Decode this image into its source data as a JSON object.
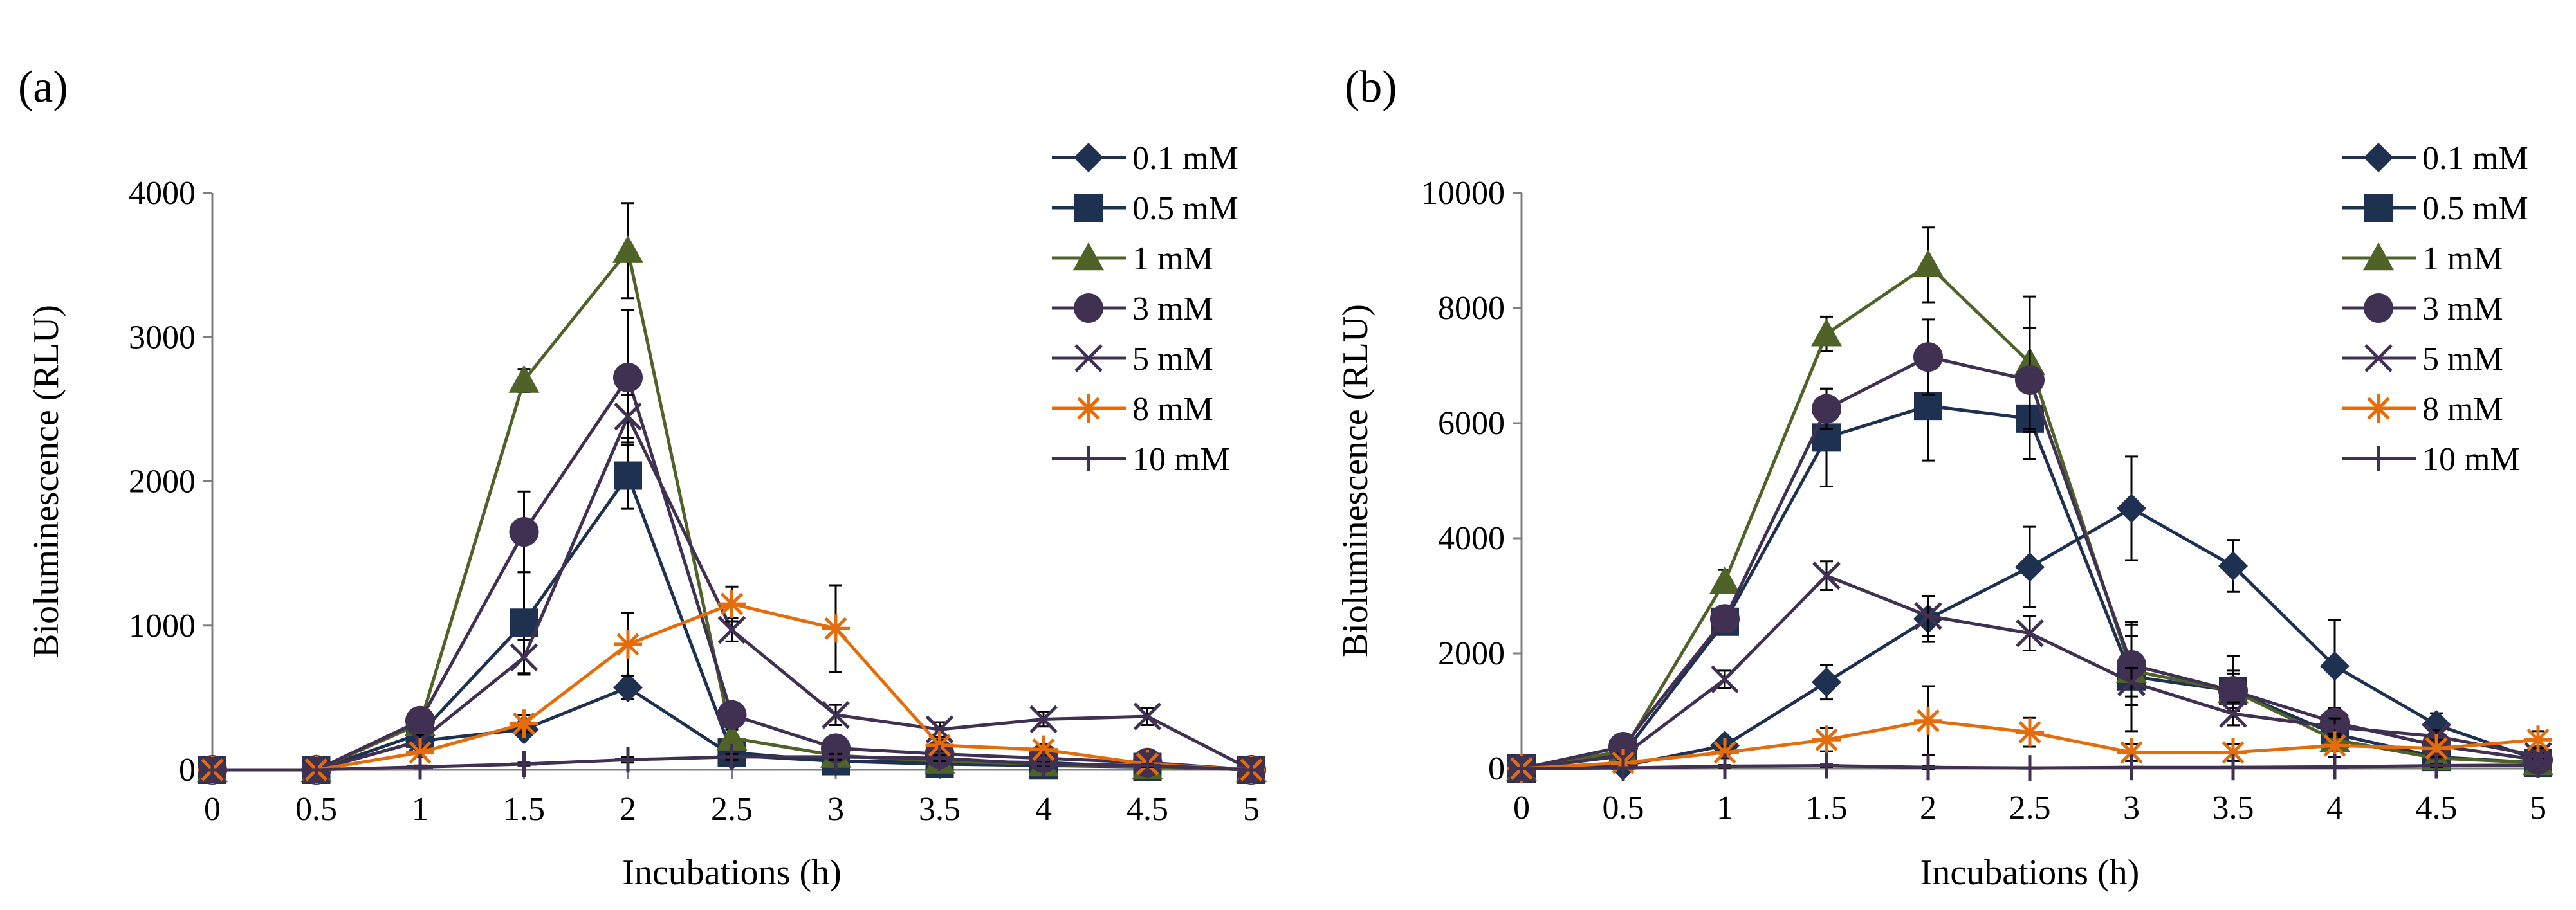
{
  "figure": {
    "panels": [
      {
        "label": "(a)"
      },
      {
        "label": "(b)"
      }
    ]
  },
  "chart_data": [
    {
      "type": "line",
      "panel_label": "(a)",
      "title": "",
      "xlabel": "Incubations (h)",
      "ylabel": "Bioluminescence (RLU)",
      "x": [
        0,
        0.5,
        1,
        1.5,
        2,
        2.5,
        3,
        3.5,
        4,
        4.5,
        5
      ],
      "x_tick_labels": [
        "0",
        "0.5",
        "1",
        "1.5",
        "2",
        "2.5",
        "3",
        "3.5",
        "4",
        "4.5",
        "5"
      ],
      "ylim": [
        0,
        4000
      ],
      "y_ticks": [
        0,
        1000,
        2000,
        3000,
        4000
      ],
      "y_tick_labels": [
        "0",
        "1000",
        "2000",
        "3000",
        "4000"
      ],
      "legend_position": "top-right",
      "series": [
        {
          "name": "0.1 mM",
          "color": "#1f3150",
          "marker": "diamond",
          "values": [
            0,
            0,
            200,
            280,
            570,
            100,
            60,
            60,
            50,
            20,
            0
          ],
          "errors": [
            0,
            0,
            30,
            50,
            80,
            30,
            20,
            20,
            20,
            10,
            0
          ]
        },
        {
          "name": "0.5 mM",
          "color": "#1f3150",
          "marker": "square",
          "values": [
            0,
            0,
            250,
            1020,
            2040,
            120,
            60,
            40,
            30,
            20,
            0
          ],
          "errors": [
            0,
            0,
            40,
            350,
            230,
            40,
            30,
            20,
            20,
            10,
            0
          ]
        },
        {
          "name": "1 mM",
          "color": "#4f6228",
          "marker": "triangle",
          "values": [
            0,
            0,
            320,
            2700,
            3600,
            220,
            100,
            60,
            40,
            20,
            0
          ],
          "errors": [
            0,
            0,
            40,
            80,
            330,
            60,
            30,
            20,
            20,
            10,
            0
          ]
        },
        {
          "name": "3 mM",
          "color": "#403152",
          "marker": "circle",
          "values": [
            0,
            0,
            340,
            1650,
            2720,
            380,
            150,
            110,
            80,
            50,
            0
          ],
          "errors": [
            0,
            0,
            50,
            280,
            470,
            60,
            40,
            30,
            20,
            20,
            0
          ]
        },
        {
          "name": "5 mM",
          "color": "#403152",
          "marker": "x",
          "values": [
            0,
            0,
            200,
            780,
            2450,
            970,
            380,
            280,
            350,
            370,
            0
          ],
          "errors": [
            0,
            0,
            40,
            120,
            150,
            80,
            70,
            50,
            50,
            60,
            0
          ]
        },
        {
          "name": "8 mM",
          "color": "#e46c0a",
          "marker": "star",
          "values": [
            0,
            0,
            120,
            320,
            870,
            1150,
            980,
            170,
            140,
            40,
            0
          ],
          "errors": [
            0,
            0,
            30,
            60,
            220,
            120,
            300,
            40,
            40,
            20,
            0
          ]
        },
        {
          "name": "10 mM",
          "color": "#403152",
          "marker": "plus",
          "values": [
            0,
            0,
            20,
            40,
            70,
            90,
            90,
            80,
            40,
            30,
            0
          ],
          "errors": [
            0,
            0,
            10,
            10,
            20,
            20,
            20,
            20,
            10,
            10,
            0
          ]
        }
      ]
    },
    {
      "type": "line",
      "panel_label": "(b)",
      "title": "",
      "xlabel": "Incubations (h)",
      "ylabel": "Bioluminescence (RLU)",
      "x": [
        0,
        0.5,
        1,
        1.5,
        2,
        2.5,
        3,
        3.5,
        4,
        4.5,
        5
      ],
      "x_tick_labels": [
        "0",
        "0.5",
        "1",
        "1.5",
        "2",
        "2.5",
        "3",
        "3.5",
        "4",
        "4.5",
        "5"
      ],
      "ylim": [
        0,
        10000
      ],
      "y_ticks": [
        0,
        2000,
        4000,
        6000,
        8000,
        10000
      ],
      "y_tick_labels": [
        "0",
        "2000",
        "4000",
        "6000",
        "8000",
        "10000"
      ],
      "legend_position": "top-right",
      "series": [
        {
          "name": "0.1 mM",
          "color": "#1f3150",
          "marker": "diamond",
          "values": [
            0,
            50,
            400,
            1500,
            2600,
            3500,
            4520,
            3520,
            1780,
            760,
            150
          ],
          "errors": [
            0,
            20,
            100,
            300,
            400,
            700,
            900,
            450,
            800,
            200,
            60
          ]
        },
        {
          "name": "0.5 mM",
          "color": "#1f3150",
          "marker": "square",
          "values": [
            0,
            250,
            2550,
            5750,
            6300,
            6080,
            1600,
            1350,
            600,
            200,
            100
          ],
          "errors": [
            0,
            50,
            200,
            850,
            950,
            700,
            950,
            600,
            300,
            100,
            50
          ]
        },
        {
          "name": "1 mM",
          "color": "#4f6228",
          "marker": "triangle",
          "values": [
            0,
            300,
            3250,
            7550,
            8750,
            7050,
            1700,
            1350,
            500,
            180,
            100
          ],
          "errors": [
            0,
            50,
            200,
            300,
            650,
            1150,
            600,
            300,
            200,
            80,
            50
          ]
        },
        {
          "name": "3 mM",
          "color": "#403152",
          "marker": "circle",
          "values": [
            0,
            380,
            2600,
            6250,
            7150,
            6750,
            1800,
            1350,
            800,
            400,
            150
          ],
          "errors": [
            0,
            60,
            200,
            350,
            650,
            900,
            700,
            350,
            250,
            120,
            60
          ]
        },
        {
          "name": "5 mM",
          "color": "#403152",
          "marker": "x",
          "values": [
            0,
            220,
            1550,
            3350,
            2650,
            2350,
            1500,
            950,
            720,
            560,
            220
          ],
          "errors": [
            0,
            40,
            150,
            250,
            350,
            300,
            250,
            200,
            150,
            100,
            60
          ]
        },
        {
          "name": "8 mM",
          "color": "#e46c0a",
          "marker": "star",
          "values": [
            0,
            100,
            280,
            500,
            830,
            630,
            280,
            280,
            400,
            350,
            500
          ],
          "errors": [
            0,
            30,
            100,
            200,
            600,
            250,
            150,
            150,
            200,
            150,
            150
          ]
        },
        {
          "name": "10 mM",
          "color": "#403152",
          "marker": "plus",
          "values": [
            0,
            10,
            40,
            50,
            20,
            10,
            20,
            20,
            30,
            50,
            60
          ],
          "errors": [
            0,
            10,
            20,
            20,
            30,
            10,
            10,
            10,
            20,
            20,
            20
          ]
        }
      ]
    }
  ]
}
